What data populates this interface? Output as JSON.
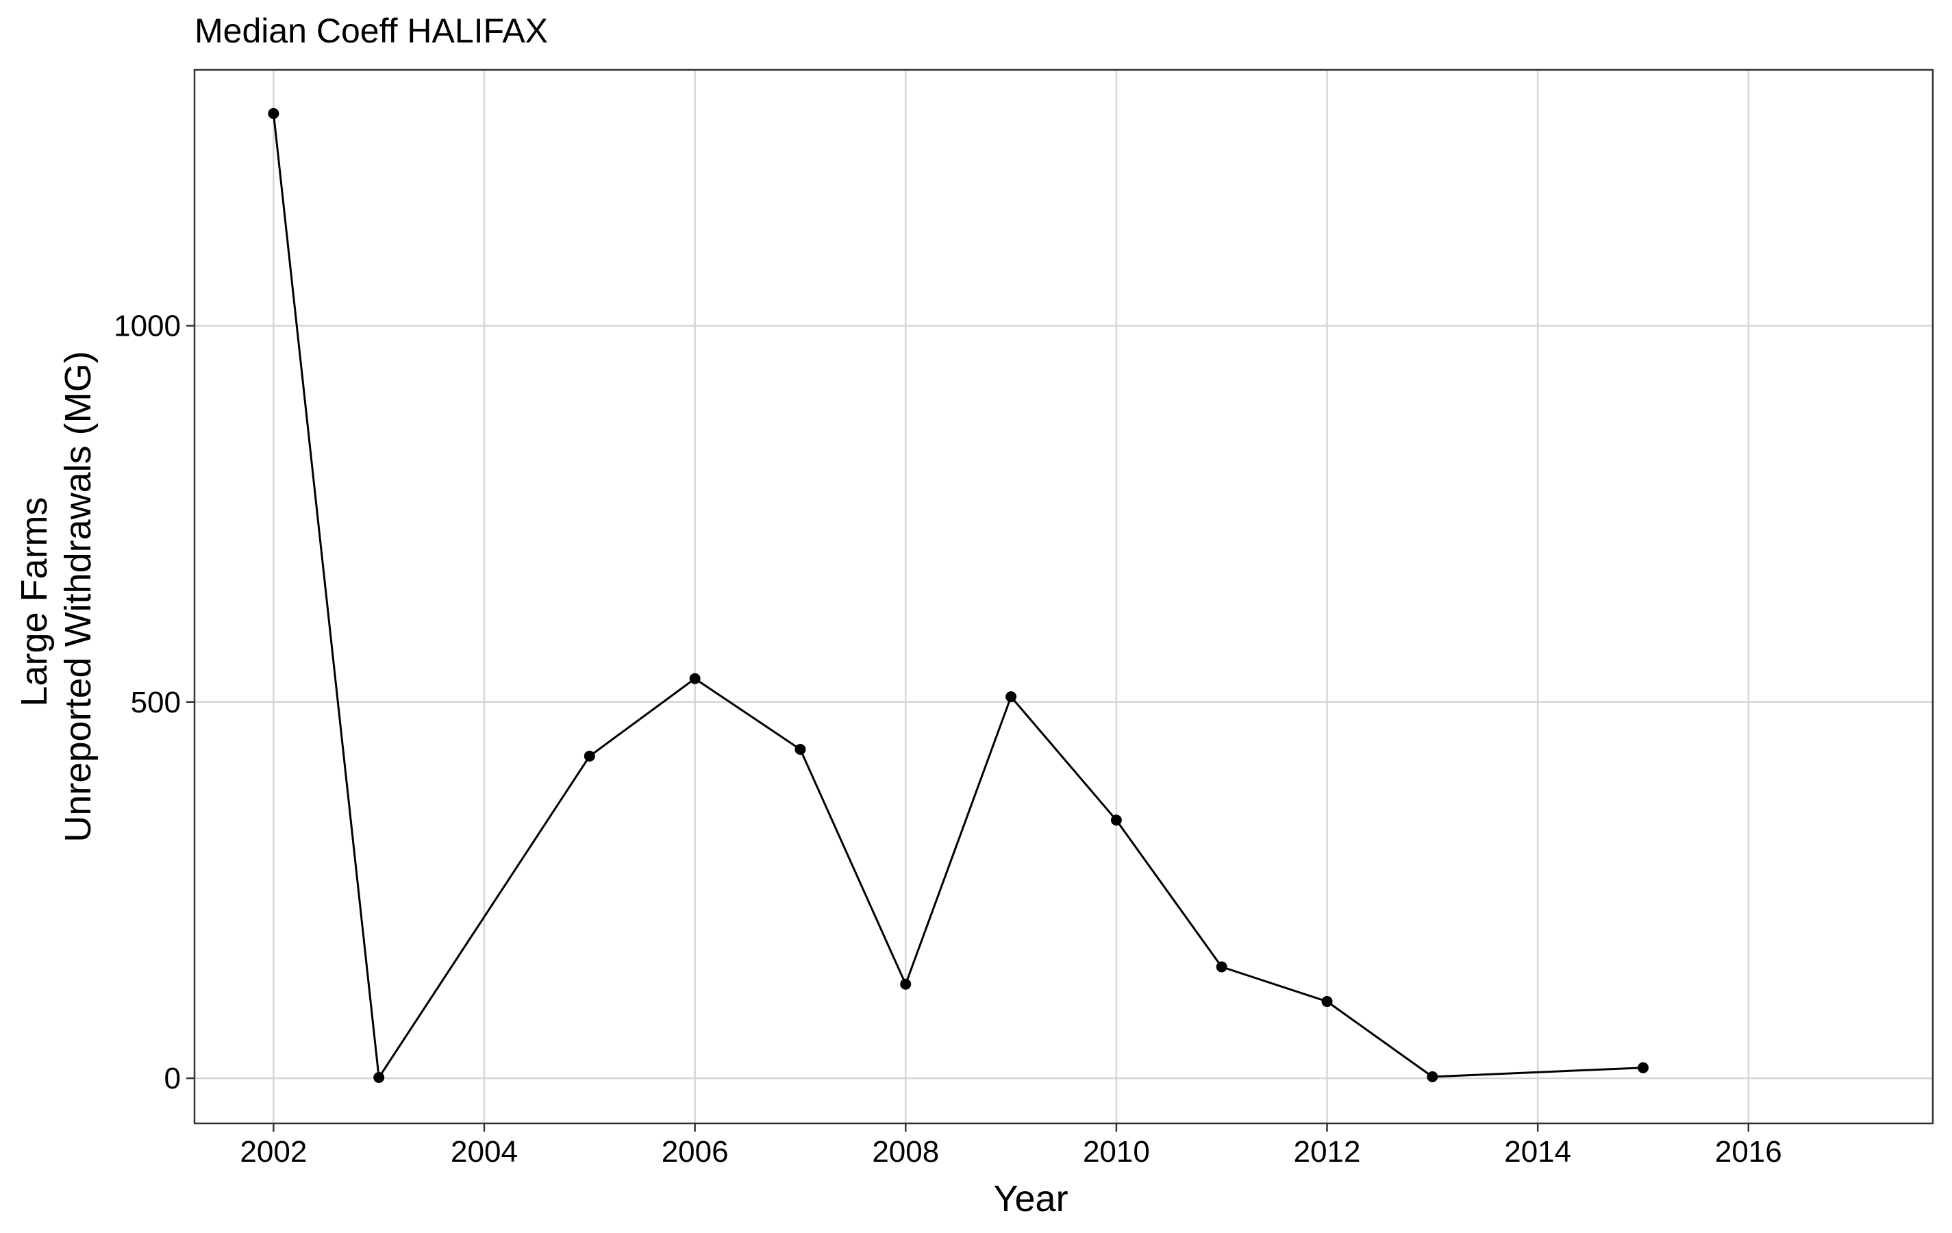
{
  "chart_data": {
    "type": "line",
    "title": "Median Coeff HALIFAX",
    "xlabel": "Year",
    "ylabel_lines": [
      "Large Farms",
      "Unreported Withdrawals (MG)"
    ],
    "xlim": [
      2001.25,
      2017.75
    ],
    "ylim": [
      -60,
      1340
    ],
    "x_ticks": [
      2002,
      2004,
      2006,
      2008,
      2010,
      2012,
      2014,
      2016
    ],
    "y_ticks": [
      0,
      500,
      1000
    ],
    "grid": true,
    "series": [
      {
        "x": [
          2002,
          2003,
          2005,
          2006,
          2007,
          2008,
          2009,
          2010,
          2011,
          2012,
          2013,
          2015
        ],
        "y": [
          1282,
          1,
          428,
          531,
          437,
          125,
          507,
          343,
          148,
          102,
          2,
          14
        ],
        "color": "#000000"
      }
    ]
  }
}
